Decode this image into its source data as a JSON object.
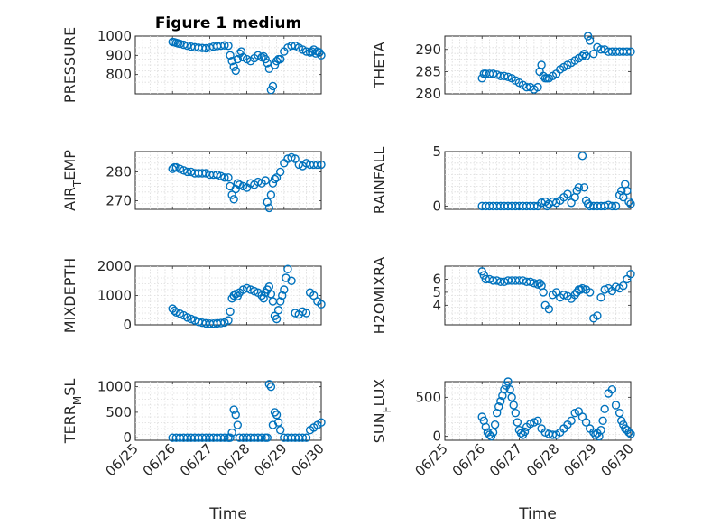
{
  "figure": {
    "title": "Figure 1 medium"
  },
  "chart_data": [
    {
      "type": "scatter",
      "ylabel": "PRESSURE",
      "xlabel": "",
      "ylim": [
        700,
        1000
      ],
      "yticks": [
        800,
        900,
        1000
      ],
      "xlim": [
        0,
        5
      ],
      "xticks": [
        0,
        1,
        2,
        3,
        4,
        5
      ],
      "xticklabels": [],
      "x": [
        1.0,
        1.05,
        1.1,
        1.15,
        1.2,
        1.3,
        1.4,
        1.5,
        1.6,
        1.7,
        1.8,
        1.9,
        2.0,
        2.1,
        2.2,
        2.3,
        2.4,
        2.5,
        2.55,
        2.6,
        2.65,
        2.7,
        2.75,
        2.8,
        2.85,
        2.9,
        3.0,
        3.1,
        3.2,
        3.3,
        3.4,
        3.45,
        3.5,
        3.55,
        3.6,
        3.65,
        3.7,
        3.75,
        3.8,
        3.85,
        3.9,
        4.0,
        4.1,
        4.2,
        4.3,
        4.4,
        4.5,
        4.6,
        4.7,
        4.75,
        4.8,
        4.85,
        4.9,
        4.95,
        5.0
      ],
      "y": [
        970,
        968,
        965,
        962,
        960,
        955,
        950,
        945,
        942,
        940,
        938,
        937,
        940,
        945,
        948,
        950,
        952,
        950,
        900,
        870,
        840,
        820,
        880,
        910,
        920,
        890,
        880,
        870,
        885,
        900,
        890,
        895,
        880,
        860,
        830,
        720,
        740,
        850,
        870,
        880,
        880,
        920,
        940,
        950,
        950,
        940,
        930,
        920,
        915,
        920,
        930,
        910,
        920,
        915,
        900
      ]
    },
    {
      "type": "scatter",
      "ylabel": "THETA",
      "xlabel": "",
      "ylim": [
        280,
        293
      ],
      "yticks": [
        280,
        285,
        290
      ],
      "xlim": [
        0,
        5
      ],
      "xticks": [
        0,
        1,
        2,
        3,
        4,
        5
      ],
      "xticklabels": [],
      "x": [
        1.0,
        1.05,
        1.1,
        1.2,
        1.3,
        1.4,
        1.5,
        1.6,
        1.7,
        1.8,
        1.9,
        2.0,
        2.1,
        2.2,
        2.3,
        2.4,
        2.5,
        2.55,
        2.6,
        2.65,
        2.7,
        2.75,
        2.8,
        2.9,
        3.0,
        3.1,
        3.2,
        3.3,
        3.4,
        3.5,
        3.6,
        3.7,
        3.75,
        3.8,
        3.85,
        3.9,
        4.0,
        4.1,
        4.2,
        4.3,
        4.4,
        4.5,
        4.6,
        4.7,
        4.8,
        4.9,
        5.0
      ],
      "y": [
        283.5,
        284.5,
        284.5,
        284.5,
        284.5,
        284.3,
        284.0,
        284.0,
        283.8,
        283.5,
        283.0,
        282.5,
        282.0,
        281.5,
        281.5,
        281.0,
        281.5,
        285.0,
        286.5,
        284.0,
        283.5,
        283.5,
        283.5,
        284.0,
        284.5,
        285.5,
        286.0,
        286.5,
        287.0,
        287.5,
        288.0,
        288.5,
        289.0,
        288.5,
        293.0,
        292.0,
        289.0,
        290.5,
        290.0,
        290.0,
        289.5,
        289.5,
        289.5,
        289.5,
        289.5,
        289.5,
        289.5
      ]
    },
    {
      "type": "scatter",
      "ylabel": "AIR_TEMP",
      "xlabel": "",
      "ylim": [
        267,
        287
      ],
      "yticks": [
        270,
        280
      ],
      "xlim": [
        0,
        5
      ],
      "xticks": [
        0,
        1,
        2,
        3,
        4,
        5
      ],
      "xticklabels": [],
      "x": [
        1.0,
        1.05,
        1.1,
        1.2,
        1.3,
        1.4,
        1.5,
        1.6,
        1.7,
        1.8,
        1.9,
        2.0,
        2.1,
        2.2,
        2.3,
        2.4,
        2.5,
        2.55,
        2.6,
        2.65,
        2.7,
        2.75,
        2.8,
        2.9,
        3.0,
        3.1,
        3.2,
        3.3,
        3.4,
        3.5,
        3.55,
        3.6,
        3.65,
        3.7,
        3.75,
        3.8,
        3.9,
        4.0,
        4.1,
        4.2,
        4.3,
        4.4,
        4.5,
        4.6,
        4.7,
        4.8,
        4.9,
        5.0
      ],
      "y": [
        281.0,
        281.5,
        281.5,
        281.0,
        280.5,
        280.0,
        280.0,
        279.5,
        279.5,
        279.5,
        279.5,
        279.0,
        279.0,
        279.0,
        278.5,
        278.0,
        278.0,
        275.0,
        272.0,
        270.5,
        274.0,
        276.0,
        275.5,
        275.0,
        274.5,
        276.0,
        275.5,
        276.5,
        276.0,
        277.0,
        269.5,
        267.5,
        272.0,
        276.0,
        277.5,
        278.0,
        280.0,
        283.0,
        284.5,
        285.0,
        284.5,
        282.5,
        282.0,
        283.0,
        282.5,
        282.5,
        282.5,
        282.5
      ]
    },
    {
      "type": "scatter",
      "ylabel": "RAINFALL",
      "xlabel": "",
      "ylim": [
        -0.3,
        5
      ],
      "yticks": [
        0,
        5
      ],
      "xlim": [
        0,
        5
      ],
      "xticks": [
        0,
        1,
        2,
        3,
        4,
        5
      ],
      "xticklabels": [],
      "x": [
        1.0,
        1.1,
        1.2,
        1.3,
        1.4,
        1.5,
        1.6,
        1.7,
        1.8,
        1.9,
        2.0,
        2.1,
        2.2,
        2.3,
        2.4,
        2.5,
        2.6,
        2.7,
        2.75,
        2.8,
        2.9,
        3.0,
        3.1,
        3.2,
        3.3,
        3.4,
        3.5,
        3.55,
        3.6,
        3.7,
        3.75,
        3.8,
        3.85,
        3.9,
        4.0,
        4.1,
        4.2,
        4.3,
        4.4,
        4.5,
        4.6,
        4.7,
        4.75,
        4.8,
        4.85,
        4.9,
        4.95,
        5.0
      ],
      "y": [
        0,
        0,
        0,
        0,
        0,
        0,
        0,
        0,
        0,
        0,
        0,
        0,
        0,
        0,
        0,
        0,
        0.3,
        0.4,
        0,
        0.2,
        0.4,
        0.3,
        0.5,
        0.8,
        1.1,
        0.3,
        0.8,
        1.4,
        1.7,
        4.6,
        1.7,
        0.5,
        0.2,
        0,
        0,
        0,
        0,
        0,
        0.1,
        0,
        0,
        1.0,
        1.4,
        0.8,
        2.0,
        1.4,
        0.4,
        0.2
      ]
    },
    {
      "type": "scatter",
      "ylabel": "MIXDEPTH",
      "xlabel": "",
      "ylim": [
        0,
        2000
      ],
      "yticks": [
        0,
        1000,
        2000
      ],
      "xlim": [
        0,
        5
      ],
      "xticks": [
        0,
        1,
        2,
        3,
        4,
        5
      ],
      "xticklabels": [],
      "x": [
        1.0,
        1.05,
        1.1,
        1.2,
        1.3,
        1.4,
        1.5,
        1.6,
        1.7,
        1.8,
        1.9,
        2.0,
        2.1,
        2.2,
        2.3,
        2.4,
        2.5,
        2.55,
        2.6,
        2.65,
        2.7,
        2.75,
        2.8,
        2.9,
        3.0,
        3.1,
        3.2,
        3.3,
        3.4,
        3.45,
        3.5,
        3.55,
        3.6,
        3.65,
        3.7,
        3.75,
        3.8,
        3.85,
        3.9,
        3.95,
        4.0,
        4.05,
        4.1,
        4.2,
        4.3,
        4.4,
        4.5,
        4.6,
        4.7,
        4.8,
        4.9,
        5.0
      ],
      "y": [
        550,
        480,
        420,
        380,
        320,
        250,
        200,
        150,
        100,
        70,
        50,
        40,
        40,
        50,
        60,
        80,
        150,
        450,
        900,
        1000,
        1050,
        980,
        1100,
        1200,
        1250,
        1200,
        1150,
        1100,
        1000,
        900,
        1100,
        1200,
        1300,
        1050,
        800,
        300,
        200,
        500,
        800,
        1000,
        1200,
        1600,
        1900,
        1500,
        400,
        350,
        450,
        400,
        1100,
        1000,
        800,
        700
      ]
    },
    {
      "type": "scatter",
      "ylabel": "H2OMIXRA",
      "xlabel": "",
      "ylim": [
        2.5,
        7
      ],
      "yticks": [
        4,
        5,
        6
      ],
      "xlim": [
        0,
        5
      ],
      "xticks": [
        0,
        1,
        2,
        3,
        4,
        5
      ],
      "xticklabels": [],
      "x": [
        1.0,
        1.05,
        1.1,
        1.2,
        1.3,
        1.4,
        1.5,
        1.6,
        1.7,
        1.8,
        1.9,
        2.0,
        2.1,
        2.2,
        2.3,
        2.4,
        2.5,
        2.55,
        2.6,
        2.65,
        2.7,
        2.8,
        2.9,
        3.0,
        3.1,
        3.2,
        3.3,
        3.4,
        3.5,
        3.55,
        3.6,
        3.65,
        3.7,
        3.8,
        3.9,
        4.0,
        4.1,
        4.2,
        4.3,
        4.4,
        4.5,
        4.6,
        4.7,
        4.8,
        4.9,
        5.0
      ],
      "y": [
        6.6,
        6.3,
        6.0,
        6.0,
        5.9,
        5.9,
        5.8,
        5.8,
        5.9,
        5.9,
        5.9,
        5.9,
        5.9,
        5.8,
        5.8,
        5.7,
        5.6,
        5.7,
        5.5,
        5.0,
        4.0,
        3.7,
        4.8,
        5.0,
        4.6,
        4.8,
        4.7,
        4.5,
        4.8,
        5.0,
        5.2,
        5.2,
        5.3,
        5.2,
        5.0,
        3.0,
        3.2,
        4.6,
        5.2,
        5.3,
        5.1,
        5.4,
        5.3,
        5.5,
        6.0,
        6.4
      ]
    },
    {
      "type": "scatter",
      "ylabel": "TERR_MSL",
      "xlabel": "Time",
      "ylim": [
        -50,
        1100
      ],
      "yticks": [
        0,
        500,
        1000
      ],
      "xlim": [
        0,
        5
      ],
      "xticks": [
        0,
        1,
        2,
        3,
        4,
        5
      ],
      "xticklabels": [
        "06/25",
        "06/26",
        "06/27",
        "06/28",
        "06/29",
        "06/30"
      ],
      "x": [
        1.0,
        1.1,
        1.2,
        1.3,
        1.4,
        1.5,
        1.6,
        1.7,
        1.8,
        1.9,
        2.0,
        2.1,
        2.2,
        2.3,
        2.4,
        2.5,
        2.55,
        2.6,
        2.65,
        2.7,
        2.75,
        2.8,
        2.9,
        3.0,
        3.1,
        3.2,
        3.3,
        3.4,
        3.5,
        3.55,
        3.6,
        3.65,
        3.7,
        3.75,
        3.8,
        3.85,
        3.9,
        4.0,
        4.1,
        4.2,
        4.3,
        4.4,
        4.5,
        4.6,
        4.7,
        4.8,
        4.9,
        5.0
      ],
      "y": [
        0,
        0,
        0,
        0,
        0,
        0,
        0,
        0,
        0,
        0,
        0,
        0,
        0,
        0,
        0,
        0,
        0,
        100,
        550,
        450,
        250,
        0,
        0,
        0,
        0,
        0,
        0,
        0,
        0,
        0,
        1050,
        1000,
        250,
        500,
        450,
        300,
        150,
        0,
        0,
        0,
        0,
        0,
        0,
        0,
        150,
        200,
        250,
        300
      ]
    },
    {
      "type": "scatter",
      "ylabel": "SUN_FLUX",
      "xlabel": "Time",
      "ylim": [
        -50,
        700
      ],
      "yticks": [
        0,
        500
      ],
      "xlim": [
        0,
        5
      ],
      "xticks": [
        0,
        1,
        2,
        3,
        4,
        5
      ],
      "xticklabels": [
        "06/25",
        "06/26",
        "06/27",
        "06/28",
        "06/29",
        "06/30"
      ],
      "x": [
        1.0,
        1.05,
        1.1,
        1.15,
        1.2,
        1.25,
        1.3,
        1.35,
        1.4,
        1.45,
        1.5,
        1.55,
        1.6,
        1.65,
        1.7,
        1.75,
        1.8,
        1.85,
        1.9,
        1.95,
        2.0,
        2.05,
        2.1,
        2.15,
        2.2,
        2.3,
        2.4,
        2.5,
        2.6,
        2.7,
        2.8,
        2.9,
        3.0,
        3.1,
        3.2,
        3.3,
        3.4,
        3.5,
        3.6,
        3.7,
        3.8,
        3.9,
        4.0,
        4.05,
        4.1,
        4.15,
        4.2,
        4.25,
        4.3,
        4.4,
        4.5,
        4.6,
        4.7,
        4.75,
        4.8,
        4.85,
        4.9,
        4.95,
        5.0
      ],
      "y": [
        250,
        200,
        120,
        50,
        20,
        0,
        50,
        150,
        300,
        380,
        450,
        520,
        600,
        650,
        700,
        600,
        500,
        400,
        300,
        180,
        80,
        40,
        20,
        60,
        120,
        160,
        180,
        200,
        100,
        50,
        30,
        20,
        20,
        50,
        100,
        150,
        200,
        300,
        320,
        250,
        180,
        100,
        50,
        20,
        40,
        0,
        80,
        200,
        350,
        550,
        600,
        400,
        300,
        200,
        150,
        100,
        80,
        50,
        30
      ]
    }
  ]
}
